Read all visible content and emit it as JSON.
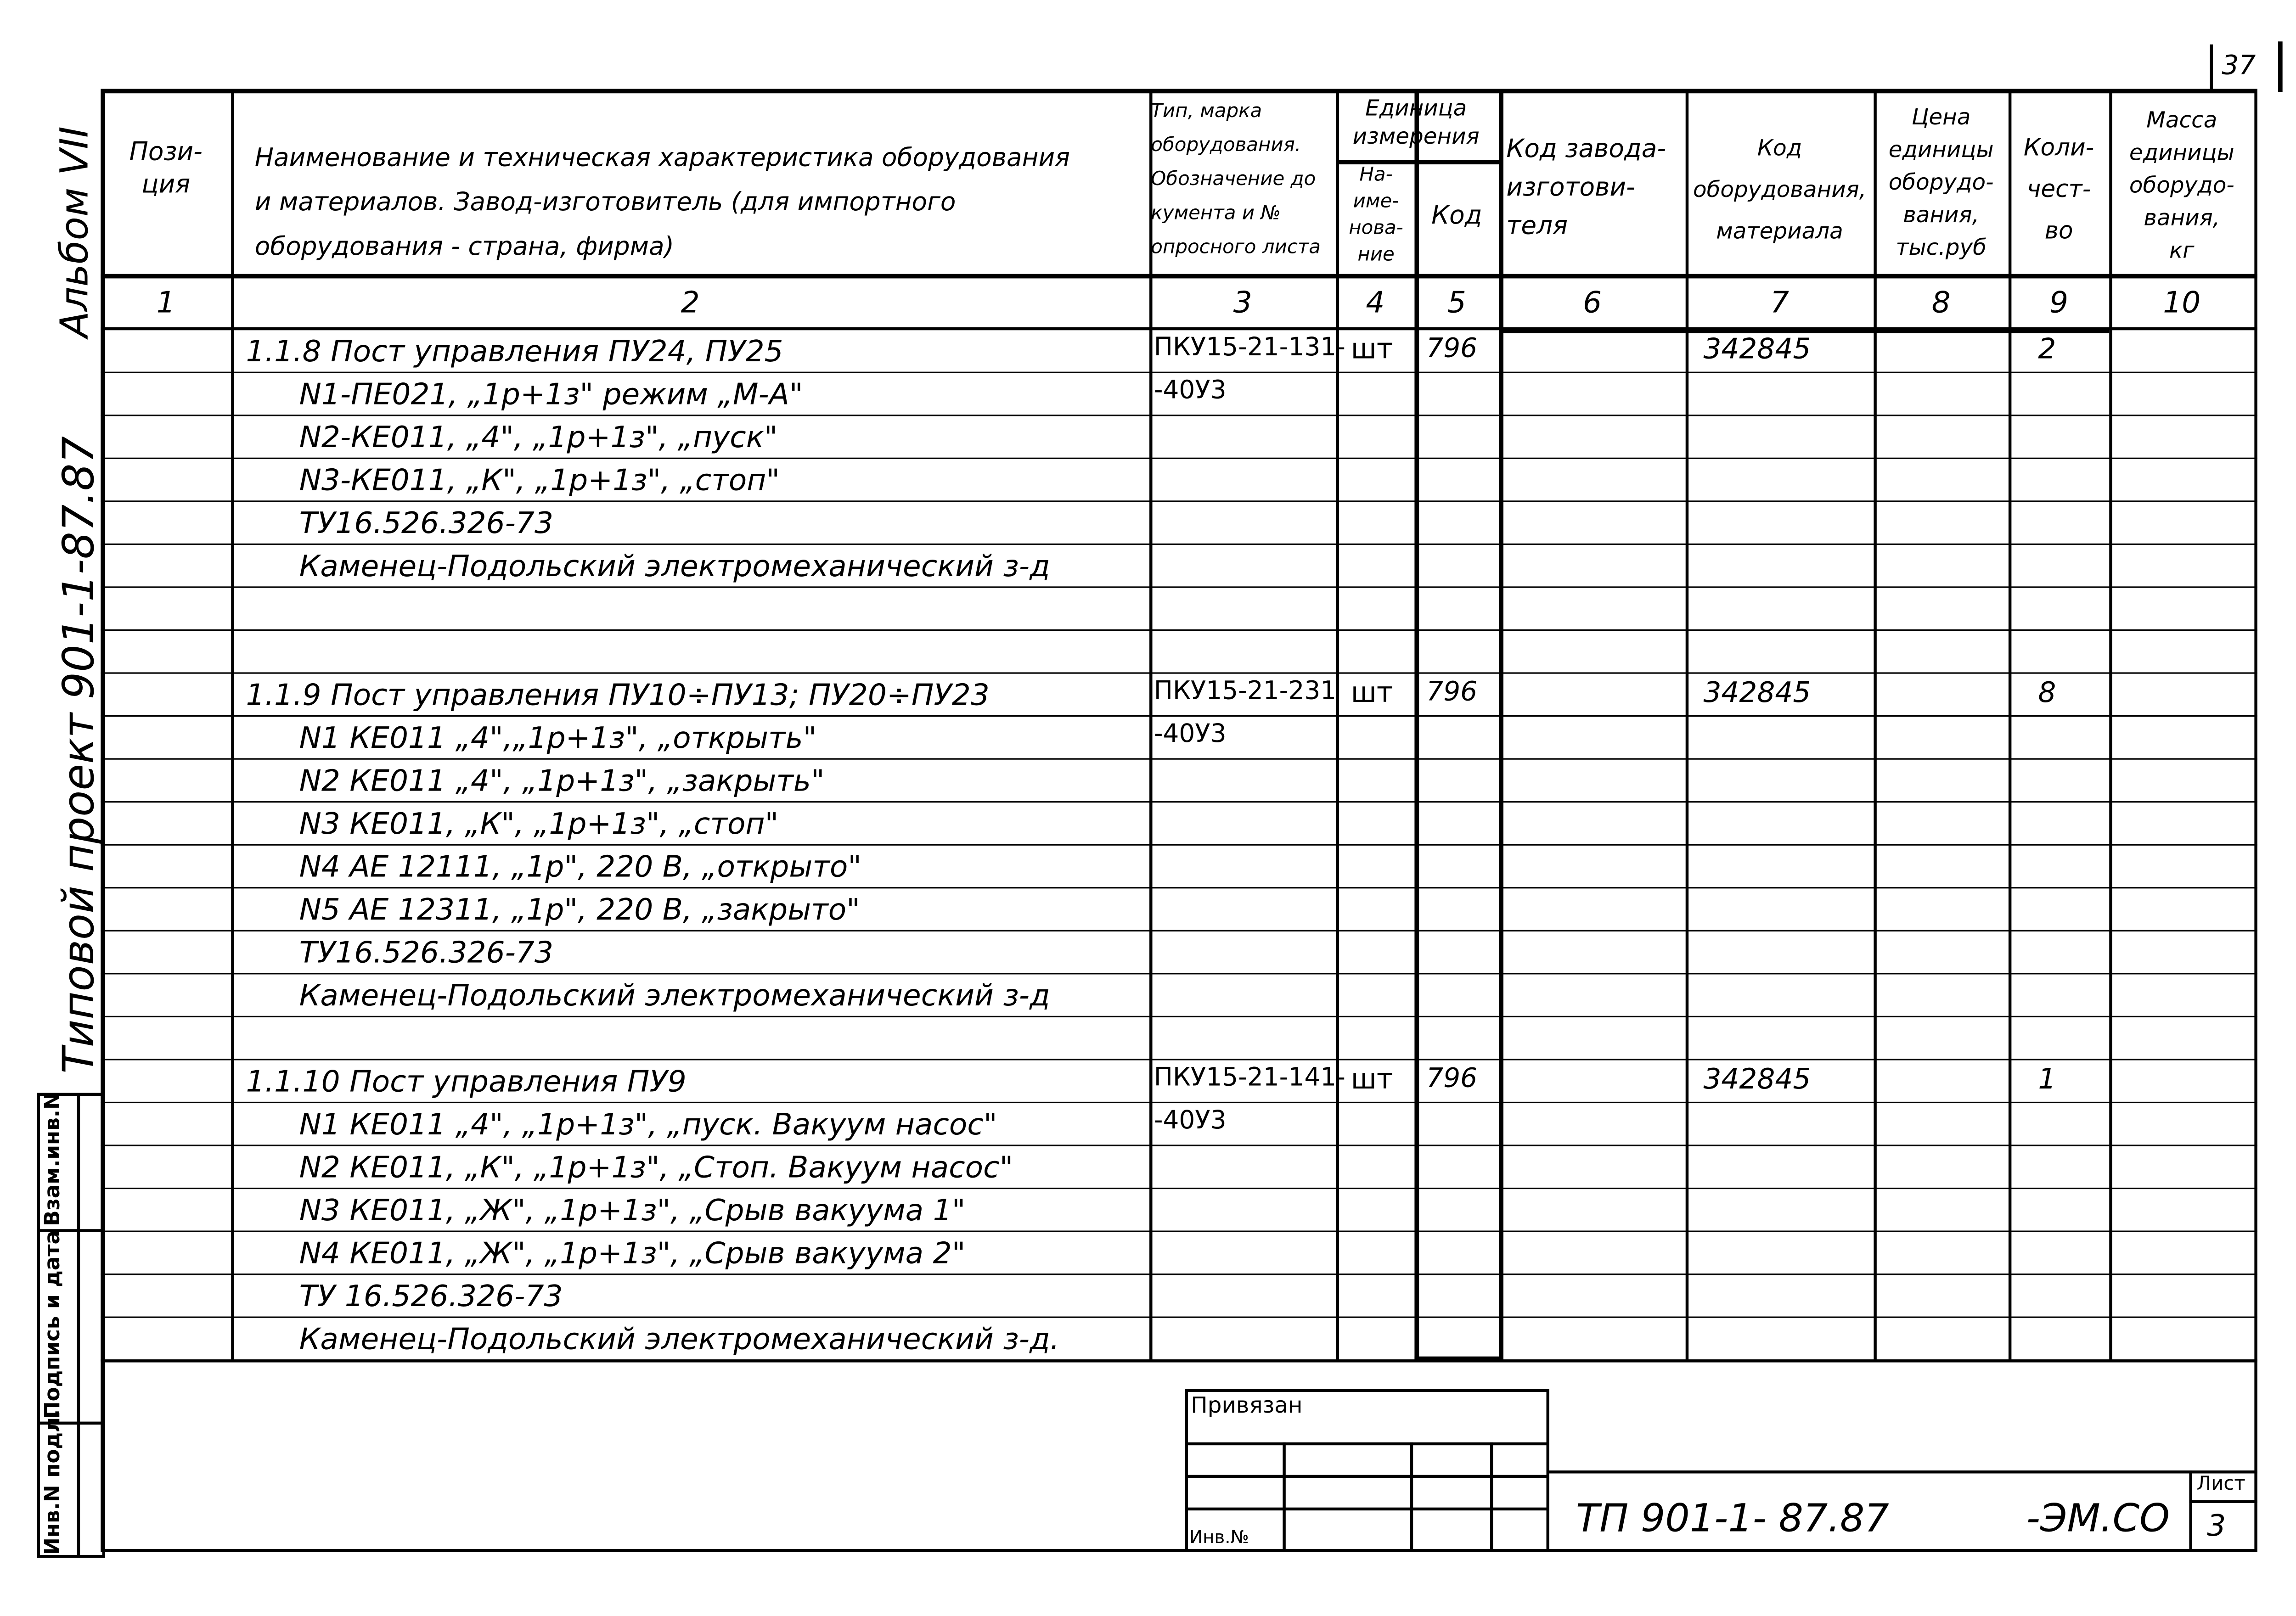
{
  "sheet_number": "37",
  "margin": {
    "album": "Альбом VII",
    "project": "Типовой проект 901-1-87.87"
  },
  "stamp": [
    "Инв.N подл.",
    "Подпись и дата",
    "Взам.инв.N"
  ],
  "header": {
    "col1": "Пози-\nция",
    "col2": "Наименование и техническая характеристика оборудования\nи материалов. Завод-изготовитель (для импортного\nоборудования - страна, фирма)",
    "col3": "Тип, марка\nоборудования.\nОбозначение до\nкумента и №\nопросного листа",
    "unit": "Единица\nизмерения",
    "col4": "На-\nиме-\nнова-\nние",
    "col5": "Код",
    "col6": "Код завода-\nизготови-\nтеля",
    "col7": "Код\nоборудования,\nматериала",
    "col8": "Цена\nединицы\nоборудо-\nвания,\nтыс.руб",
    "col9": "Коли-\nчест-\nво",
    "col10": "Масса\nединицы\nоборудо-\nвания,\nкг"
  },
  "col_numbers": [
    "1",
    "2",
    "3",
    "4",
    "5",
    "6",
    "7",
    "8",
    "9",
    "10"
  ],
  "rows": [
    {
      "name": "1.1.8  Пост управления ПУ24, ПУ25",
      "type": "ПКУ15-21-131-",
      "unit": "шт",
      "code": "796",
      "equip_code": "342845",
      "qty": "2"
    },
    {
      "name": "N1-ПЕ021, „1р+1з\" режим „М-А\"",
      "indent": true,
      "type": "-40У3"
    },
    {
      "name": "N2-КЕ011, „4\", „1р+1з\", „пуск\"",
      "indent": true
    },
    {
      "name": "N3-КЕ011, „К\", „1р+1з\", „стоп\"",
      "indent": true
    },
    {
      "name": "ТУ16.526.326-73",
      "indent": true
    },
    {
      "name": "Каменец-Подольский электромеханический з-д",
      "indent": true
    },
    {},
    {},
    {
      "name": "1.1.9  Пост управления ПУ10÷ПУ13; ПУ20÷ПУ23",
      "type": "ПКУ15-21-231",
      "unit": "шт",
      "code": "796",
      "equip_code": "342845",
      "qty": "8"
    },
    {
      "name": "N1  КЕ011 „4\",„1р+1з\", „открыть\"",
      "indent": true,
      "type": "-40У3"
    },
    {
      "name": "N2  КЕ011 „4\", „1р+1з\", „закрыть\"",
      "indent": true
    },
    {
      "name": "N3  КЕ011, „К\", „1р+1з\", „стоп\"",
      "indent": true
    },
    {
      "name": "N4  АЕ 12111, „1р\", 220 В, „открыто\"",
      "indent": true
    },
    {
      "name": "N5  АЕ 12311, „1р\", 220 В, „закрыто\"",
      "indent": true
    },
    {
      "name": "ТУ16.526.326-73",
      "indent": true
    },
    {
      "name": "Каменец-Подольский электромеханический з-д",
      "indent": true
    },
    {},
    {
      "name": "1.1.10  Пост управления ПУ9",
      "type": "ПКУ15-21-141-",
      "unit": "шт",
      "code": "796",
      "equip_code": "342845",
      "qty": "1"
    },
    {
      "name": "N1  КЕ011 „4\", „1р+1з\", „пуск. Вакуум насос\"",
      "indent": true,
      "type": "-40У3"
    },
    {
      "name": "N2  КЕ011, „К\", „1р+1з\", „Стоп. Вакуум насос\"",
      "indent": true
    },
    {
      "name": "N3  КЕ011, „Ж\", „1р+1з\", „Срыв вакуума 1\"",
      "indent": true
    },
    {
      "name": "N4  КЕ011, „Ж\", „1р+1з\", „Срыв вакуума 2\"",
      "indent": true
    },
    {
      "name": "ТУ 16.526.326-73",
      "indent": true
    },
    {
      "name": "Каменец-Подольский электромеханический з-д.",
      "indent": true
    }
  ],
  "title_block": {
    "privyazan": "Привязан",
    "inv_no": "Инв.№",
    "doc_code": "ТП 901-1- 87.87",
    "doc_suffix": "-ЭМ.СО",
    "sheet_label": "Лист",
    "sheet_value": "3"
  }
}
